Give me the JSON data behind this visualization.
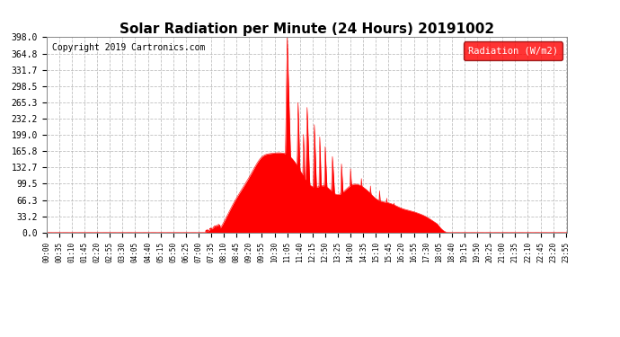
{
  "title": "Solar Radiation per Minute (24 Hours) 20191002",
  "copyright": "Copyright 2019 Cartronics.com",
  "legend_label": "Radiation (W/m2)",
  "y_ticks": [
    0.0,
    33.2,
    66.3,
    99.5,
    132.7,
    165.8,
    199.0,
    232.2,
    265.3,
    298.5,
    331.7,
    364.8,
    398.0
  ],
  "ylim": [
    0.0,
    398.0
  ],
  "fill_color": "#ff0000",
  "line_color": "#ff0000",
  "bg_color": "#ffffff",
  "grid_color": "#b0b0b0",
  "title_fontsize": 11,
  "copyright_fontsize": 7,
  "total_minutes": 1440,
  "tick_step": 35
}
